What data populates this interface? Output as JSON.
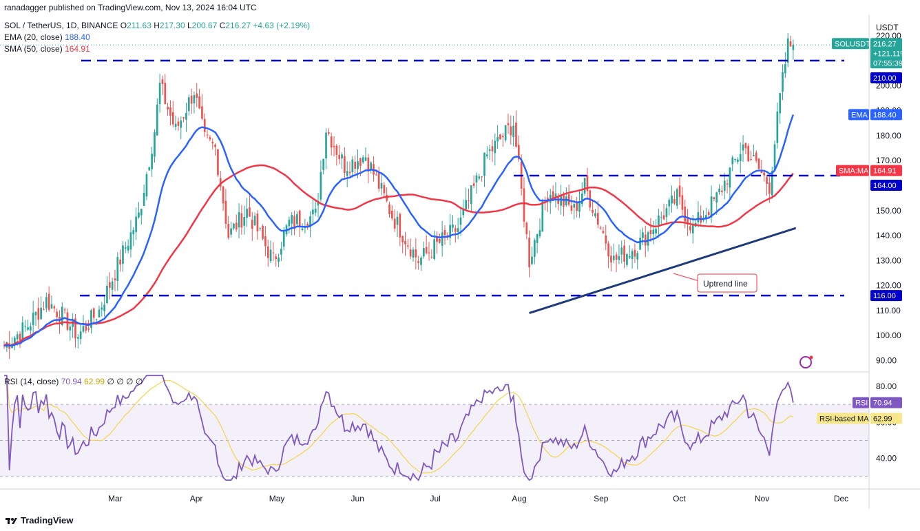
{
  "header": {
    "publisher": "ranadagger published on TradingView.com, Nov 13, 2024 16:04 UTC",
    "symbol_line": "SOL / TetherUS, 1D, BINANCE",
    "o_label": "O",
    "o_val": "211.63",
    "h_label": "H",
    "h_val": "217.30",
    "l_label": "L",
    "l_val": "200.67",
    "c_label": "C",
    "c_val": "216.27",
    "change": "+4.63 (+2.19%)",
    "ema_label": "EMA (20, close)",
    "ema_val": "188.40",
    "sma_label": "SMA (50, close)",
    "sma_val": "164.91",
    "rsi_label": "RSI (14, close)",
    "rsi_val": "70.94",
    "rsi_ma_val": "62.99",
    "rsi_extra": "∅ ∅ ∅ ∅"
  },
  "currency": "USDT",
  "badges": {
    "symbol": "SOLUSDT",
    "price": "216.27",
    "change_pct": "+121.11%",
    "countdown": "07:55:39",
    "level_210": "210.00",
    "ema_tag": "EMA",
    "ema_val": "188.40",
    "sma_tag": "SMA:MA",
    "sma_val": "164.91",
    "level_164": "164.00",
    "level_116": "116.00",
    "rsi_tag": "RSI",
    "rsi_val": "70.94",
    "rsi_ma_tag": "RSI-based MA",
    "rsi_ma_val": "62.99"
  },
  "annotation": "Uptrend line",
  "footer": "TradingView",
  "colors": {
    "up": "#26a69a",
    "down": "#ef5350",
    "ema": "#2962ff",
    "sma": "#f23645",
    "rsi": "#7e57c2",
    "rsi_ma": "#f5d44b",
    "level": "#0000cc",
    "trend": "#1e3a7b"
  },
  "chart_data": {
    "type": "candlestick",
    "title": "SOL / TetherUS, 1D, BINANCE",
    "price_axis": {
      "ticks": [
        90,
        100,
        110,
        120,
        130,
        140,
        150,
        160,
        170,
        180,
        190,
        200,
        210,
        220
      ],
      "range": [
        86,
        226
      ]
    },
    "x_ticks": [
      "Mar",
      "Apr",
      "May",
      "Jun",
      "Jul",
      "Aug",
      "Sep",
      "Oct",
      "Nov",
      "Dec"
    ],
    "horizontal_levels": [
      210,
      164,
      116
    ],
    "uptrend_line": {
      "from": {
        "date": "2024-08-05",
        "price": 109
      },
      "to": {
        "date": "2024-11-14",
        "price": 143
      }
    },
    "price_path": [
      {
        "date": "2024-01-19",
        "close": 96
      },
      {
        "date": "2024-01-28",
        "close": 104
      },
      {
        "date": "2024-02-04",
        "close": 114
      },
      {
        "date": "2024-02-10",
        "close": 108
      },
      {
        "date": "2024-02-16",
        "close": 100
      },
      {
        "date": "2024-02-24",
        "close": 110
      },
      {
        "date": "2024-03-02",
        "close": 128
      },
      {
        "date": "2024-03-10",
        "close": 148
      },
      {
        "date": "2024-03-16",
        "close": 182
      },
      {
        "date": "2024-03-18",
        "close": 200
      },
      {
        "date": "2024-03-24",
        "close": 182
      },
      {
        "date": "2024-03-31",
        "close": 198
      },
      {
        "date": "2024-04-04",
        "close": 178
      },
      {
        "date": "2024-04-08",
        "close": 175
      },
      {
        "date": "2024-04-13",
        "close": 140
      },
      {
        "date": "2024-04-20",
        "close": 150
      },
      {
        "date": "2024-04-30",
        "close": 130
      },
      {
        "date": "2024-05-06",
        "close": 145
      },
      {
        "date": "2024-05-16",
        "close": 148
      },
      {
        "date": "2024-05-20",
        "close": 183
      },
      {
        "date": "2024-05-27",
        "close": 168
      },
      {
        "date": "2024-06-04",
        "close": 172
      },
      {
        "date": "2024-06-14",
        "close": 148
      },
      {
        "date": "2024-06-24",
        "close": 130
      },
      {
        "date": "2024-07-03",
        "close": 138
      },
      {
        "date": "2024-07-09",
        "close": 143
      },
      {
        "date": "2024-07-20",
        "close": 172
      },
      {
        "date": "2024-07-30",
        "close": 185
      },
      {
        "date": "2024-08-05",
        "close": 130
      },
      {
        "date": "2024-08-12",
        "close": 158
      },
      {
        "date": "2024-08-22",
        "close": 150
      },
      {
        "date": "2024-08-26",
        "close": 160
      },
      {
        "date": "2024-09-06",
        "close": 130
      },
      {
        "date": "2024-09-15",
        "close": 136
      },
      {
        "date": "2024-09-30",
        "close": 155
      },
      {
        "date": "2024-10-06",
        "close": 143
      },
      {
        "date": "2024-10-15",
        "close": 155
      },
      {
        "date": "2024-10-25",
        "close": 176
      },
      {
        "date": "2024-11-04",
        "close": 160
      },
      {
        "date": "2024-11-08",
        "close": 195
      },
      {
        "date": "2024-11-11",
        "close": 216
      },
      {
        "date": "2024-11-13",
        "close": 216.27
      }
    ],
    "ema20_last": 188.4,
    "sma50_last": 164.91,
    "rsi_axis": {
      "ticks": [
        40,
        60,
        80
      ],
      "range": [
        25,
        88
      ],
      "bands": [
        30,
        70
      ]
    },
    "rsi_last": 70.94,
    "rsi_ma_last": 62.99
  }
}
